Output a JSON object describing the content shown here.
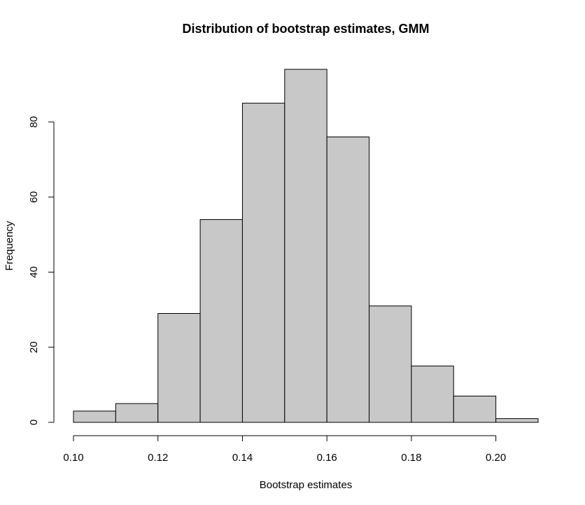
{
  "chart_data": {
    "type": "bar",
    "title": "Distribution of bootstrap estimates, GMM",
    "xlabel": "Bootstrap estimates",
    "ylabel": "Frequency",
    "bins": [
      {
        "from": 0.1,
        "to": 0.11,
        "count": 3
      },
      {
        "from": 0.11,
        "to": 0.12,
        "count": 5
      },
      {
        "from": 0.12,
        "to": 0.13,
        "count": 29
      },
      {
        "from": 0.13,
        "to": 0.14,
        "count": 54
      },
      {
        "from": 0.14,
        "to": 0.15,
        "count": 85
      },
      {
        "from": 0.15,
        "to": 0.16,
        "count": 94
      },
      {
        "from": 0.16,
        "to": 0.17,
        "count": 76
      },
      {
        "from": 0.17,
        "to": 0.18,
        "count": 31
      },
      {
        "from": 0.18,
        "to": 0.19,
        "count": 15
      },
      {
        "from": 0.19,
        "to": 0.2,
        "count": 7
      },
      {
        "from": 0.2,
        "to": 0.21,
        "count": 1
      }
    ],
    "xticks": [
      "0.10",
      "0.12",
      "0.14",
      "0.16",
      "0.18",
      "0.20"
    ],
    "yticks": [
      "0",
      "20",
      "40",
      "60",
      "80"
    ],
    "xlim": [
      0.1,
      0.21
    ],
    "ylim": [
      0,
      94
    ],
    "grid": false,
    "colors": {
      "bar_fill": "#c8c8c8",
      "bar_stroke": "#000000"
    }
  }
}
